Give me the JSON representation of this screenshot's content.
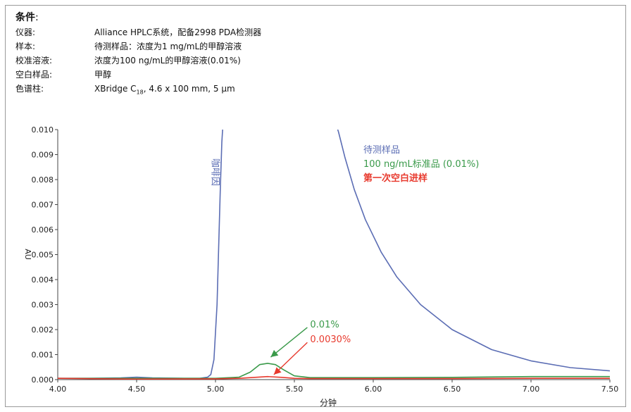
{
  "conditions": {
    "title": "条件",
    "title_suffix": ":",
    "rows": [
      {
        "label": "仪器:",
        "value": "Alliance HPLC系统，配备2998 PDA检测器"
      },
      {
        "label": "样本:",
        "value": "待测样品：浓度为1 mg/mL的甲醇溶液"
      },
      {
        "label": "校准溶液:",
        "value": "浓度为100 ng/mL的甲醇溶液(0.01%)"
      },
      {
        "label": "空白样品:",
        "value": "甲醇"
      },
      {
        "label": "色谱柱:",
        "value_pre": "XBridge C",
        "value_sub": "18",
        "value_post": ", 4.6 x 100 mm, 5 μm"
      }
    ]
  },
  "colors": {
    "sample": "#5b6db4",
    "standard": "#3a9a4a",
    "blank": "#e83a2e",
    "blank_light": "#f5a07a",
    "axis": "#444444"
  },
  "chart_data": {
    "type": "line",
    "xlabel": "分钟",
    "ylabel": "AU",
    "xlim": [
      4.0,
      7.5
    ],
    "ylim": [
      0.0,
      0.01
    ],
    "xticks": [
      "4.00",
      "4.50",
      "5.00",
      "5.50",
      "6.00",
      "6.50",
      "7.00",
      "7.50"
    ],
    "yticks": [
      "0.000",
      "0.001",
      "0.002",
      "0.003",
      "0.004",
      "0.005",
      "0.006",
      "0.007",
      "0.008",
      "0.009",
      "0.010"
    ],
    "legend_position": "top-right",
    "series": [
      {
        "name": "待测样品",
        "color": "#5b6db4",
        "x": [
          4.0,
          4.2,
          4.4,
          4.5,
          4.6,
          4.8,
          4.9,
          4.95,
          4.97,
          4.99,
          5.01,
          5.03,
          5.04,
          5.05
        ],
        "y": [
          5e-05,
          5e-05,
          7e-05,
          0.0001,
          7e-05,
          5e-05,
          5e-05,
          0.0001,
          0.0002,
          0.0008,
          0.003,
          0.0075,
          0.0095,
          0.0105
        ]
      },
      {
        "name": "待测样品",
        "color": "#5b6db4",
        "x": [
          5.75,
          5.78,
          5.82,
          5.88,
          5.95,
          6.05,
          6.15,
          6.3,
          6.5,
          6.75,
          7.0,
          7.25,
          7.5
        ],
        "y": [
          0.0105,
          0.0099,
          0.0089,
          0.0076,
          0.0064,
          0.0051,
          0.0041,
          0.003,
          0.002,
          0.0012,
          0.00075,
          0.00048,
          0.00035
        ]
      },
      {
        "name": "100 ng/mL标准品 (0.01%)",
        "color": "#3a9a4a",
        "x": [
          4.0,
          4.5,
          5.0,
          5.15,
          5.22,
          5.28,
          5.33,
          5.38,
          5.43,
          5.5,
          5.6,
          6.0,
          6.5,
          7.0,
          7.5
        ],
        "y": [
          5e-05,
          5e-05,
          5e-05,
          0.0001,
          0.0003,
          0.0006,
          0.00065,
          0.0006,
          0.0004,
          0.00015,
          8e-05,
          8e-05,
          9e-05,
          0.00012,
          0.00012
        ]
      },
      {
        "name": "第一次空白进样",
        "color": "#e83a2e",
        "x": [
          4.0,
          4.5,
          5.0,
          5.15,
          5.25,
          5.33,
          5.42,
          5.5,
          5.6,
          6.0,
          6.5,
          7.0,
          7.5
        ],
        "y": [
          5e-05,
          2e-05,
          3e-05,
          5e-05,
          9e-05,
          0.00012,
          9e-05,
          5e-05,
          4e-05,
          4e-05,
          4e-05,
          5e-05,
          5e-05
        ]
      }
    ],
    "annotations": [
      {
        "text": "咖啡因",
        "x": 4.98,
        "y": 0.0083,
        "orientation": "vertical",
        "color": "#5b6db4"
      },
      {
        "text": "0.01%",
        "x": 5.6,
        "y": 0.0022,
        "color": "#3a9a4a",
        "arrow_to": [
          5.35,
          0.0009
        ]
      },
      {
        "text": "0.0030%",
        "x": 5.6,
        "y": 0.0016,
        "color": "#e83a2e",
        "arrow_to": [
          5.37,
          0.0002
        ]
      }
    ],
    "legend": [
      {
        "label": "待测样品",
        "color": "#5b6db4"
      },
      {
        "label": "100 ng/mL标准品 (0.01%)",
        "color": "#3a9a4a"
      },
      {
        "label": "第一次空白进样",
        "color": "#e83a2e"
      }
    ]
  }
}
